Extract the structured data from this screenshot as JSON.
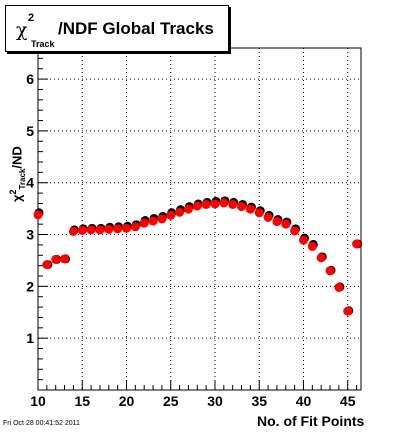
{
  "title": {
    "chi": "χ",
    "sup": "2",
    "sub": "Track",
    "main": "/NDF  Global Tracks"
  },
  "ylabel": {
    "chi": "χ",
    "sup": "2",
    "sub": "Track",
    "rest": "/ND"
  },
  "xlabel": "No. of Fit Points",
  "footer": "Fri Oct 28 00:41:52 2011",
  "colors": {
    "marker_front": "#ff0000",
    "marker_back": "#000000",
    "grid": "#000000"
  },
  "chart_data": {
    "type": "scatter",
    "x": [
      10,
      11,
      12,
      13,
      14,
      15,
      16,
      17,
      18,
      19,
      20,
      21,
      22,
      23,
      24,
      25,
      26,
      27,
      28,
      29,
      30,
      31,
      32,
      33,
      34,
      35,
      36,
      37,
      38,
      39,
      40,
      41,
      42,
      43,
      44,
      45,
      46
    ],
    "series": [
      {
        "values": [
          3.38,
          2.42,
          2.52,
          2.53,
          3.06,
          3.08,
          3.09,
          3.09,
          3.1,
          3.11,
          3.12,
          3.15,
          3.22,
          3.26,
          3.3,
          3.37,
          3.43,
          3.49,
          3.55,
          3.58,
          3.59,
          3.61,
          3.58,
          3.54,
          3.49,
          3.42,
          3.33,
          3.25,
          3.2,
          3.07,
          2.89,
          2.77,
          2.55,
          2.3,
          1.98,
          1.52,
          2.82
        ]
      },
      {
        "values": [
          3.42,
          2.42,
          2.52,
          2.53,
          3.09,
          3.11,
          3.12,
          3.12,
          3.14,
          3.15,
          3.16,
          3.19,
          3.27,
          3.31,
          3.35,
          3.42,
          3.48,
          3.54,
          3.59,
          3.62,
          3.64,
          3.65,
          3.62,
          3.58,
          3.53,
          3.46,
          3.37,
          3.29,
          3.24,
          3.11,
          2.93,
          2.81,
          2.57,
          2.31,
          1.99,
          1.53,
          2.82
        ]
      }
    ],
    "xlim": [
      10,
      46.5
    ],
    "ylim": [
      0,
      6.6
    ],
    "x_ticks": [
      "10",
      "15",
      "20",
      "25",
      "30",
      "35",
      "40",
      "45"
    ],
    "y_ticks": [
      "1",
      "2",
      "3",
      "4",
      "5",
      "6"
    ],
    "grid": true
  }
}
